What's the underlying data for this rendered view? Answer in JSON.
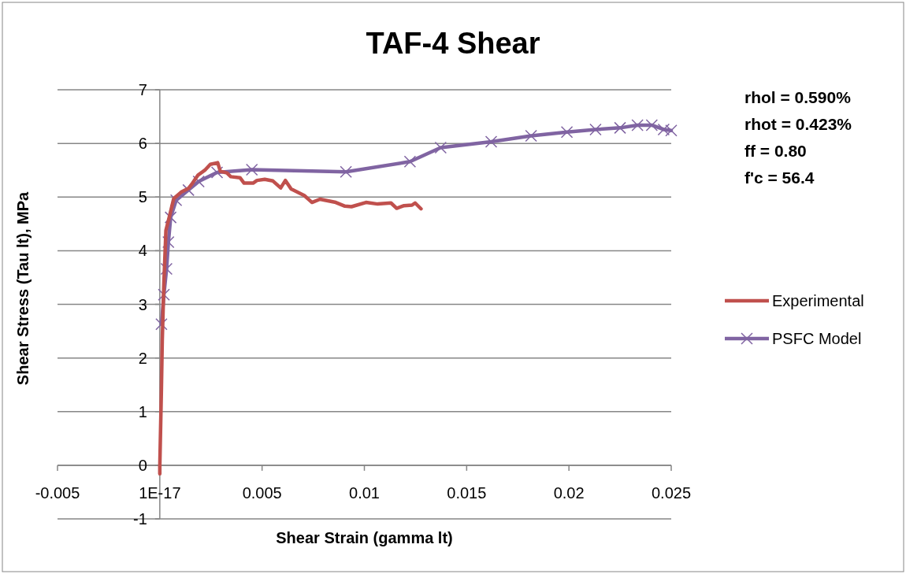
{
  "chart_data": {
    "type": "line",
    "title": "TAF-4  Shear",
    "xlabel": "Shear Strain (gamma lt)",
    "ylabel": "Shear Stress (Tau lt), MPa",
    "xlim": [
      -0.005,
      0.025
    ],
    "ylim": [
      -1,
      7
    ],
    "xticks": [
      -0.005,
      {
        "value": 0,
        "label": "1E-17"
      },
      0.005,
      0.01,
      0.015,
      0.02,
      0.025
    ],
    "yticks": [
      -1,
      0,
      1,
      2,
      3,
      4,
      5,
      6,
      7
    ],
    "grid": "y",
    "legend": "right",
    "line_style": "solid",
    "annotations": [
      "rhol = 0.590%",
      "rhot = 0.423%",
      "ff = 0.80",
      "f'c = 56.4"
    ],
    "series": [
      {
        "name": "Experimental",
        "color": "#c0504d",
        "marker": "none",
        "x": [
          0,
          0,
          8e-05,
          0.00012,
          0.0002,
          0.0003,
          0.00046,
          0.00068,
          0.00104,
          0.0014,
          0.0016,
          0.00187,
          0.0022,
          0.00247,
          0.00283,
          0.00296,
          0.00328,
          0.00347,
          0.00392,
          0.00412,
          0.00456,
          0.00475,
          0.00513,
          0.00553,
          0.00591,
          0.00614,
          0.00642,
          0.00706,
          0.00744,
          0.00783,
          0.0086,
          0.00905,
          0.00937,
          0.01008,
          0.01065,
          0.0113,
          0.01158,
          0.01194,
          0.01233,
          0.01248,
          0.01277
        ],
        "values": [
          -0.16,
          -0.03,
          1.44,
          2.32,
          3.4,
          4.38,
          4.62,
          4.97,
          5.09,
          5.16,
          5.26,
          5.41,
          5.5,
          5.61,
          5.64,
          5.48,
          5.45,
          5.38,
          5.36,
          5.26,
          5.26,
          5.31,
          5.33,
          5.3,
          5.17,
          5.31,
          5.15,
          5.03,
          4.9,
          4.96,
          4.9,
          4.83,
          4.82,
          4.9,
          4.87,
          4.89,
          4.79,
          4.84,
          4.85,
          4.89,
          4.78
        ]
      },
      {
        "name": "PSFC Model",
        "color": "#8064a2",
        "marker": "cross",
        "x": [
          8e-05,
          0.0002,
          0.00033,
          0.00042,
          0.00053,
          0.0008,
          0.0014,
          0.0019,
          0.0028,
          0.0045,
          0.0091,
          0.01223,
          0.01373,
          0.0162,
          0.01815,
          0.0199,
          0.0213,
          0.0225,
          0.02335,
          0.02405,
          0.02463,
          0.025
        ],
        "values": [
          2.63,
          3.18,
          3.66,
          4.16,
          4.62,
          4.94,
          5.13,
          5.29,
          5.46,
          5.51,
          5.47,
          5.66,
          5.92,
          6.03,
          6.14,
          6.21,
          6.26,
          6.29,
          6.34,
          6.34,
          6.26,
          6.24
        ]
      }
    ]
  }
}
